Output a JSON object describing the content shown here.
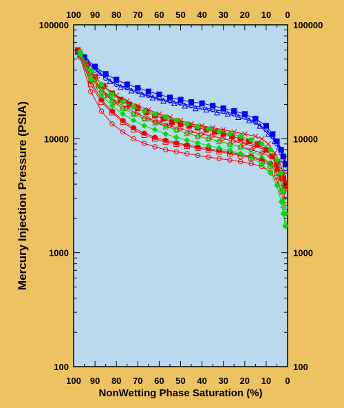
{
  "chart_data": {
    "type": "line",
    "title": "",
    "xlabel": "NonWetting Phase Saturation (%)",
    "ylabel": "Mercury Injection Pressure (PSIA)",
    "x_ticks": [
      100,
      90,
      80,
      70,
      60,
      50,
      40,
      30,
      20,
      10,
      0
    ],
    "y_ticks": [
      100,
      1000,
      10000,
      100000
    ],
    "y_tick_labels": [
      "100",
      "1000",
      "10000",
      "100000"
    ],
    "xlim": [
      100,
      0
    ],
    "ylim": [
      100,
      100000
    ],
    "y_scale": "log",
    "x_reversed": true,
    "grid": false,
    "legend": "none",
    "plot_background": "#B9D9EE",
    "series_colors": {
      "blue": "#0000FF",
      "red": "#EE0000",
      "green": "#00DD00"
    },
    "series": [
      {
        "color": "#0000FF",
        "marker": "square",
        "x": [
          98,
          95,
          90,
          85,
          80,
          75,
          70,
          65,
          60,
          55,
          50,
          45,
          40,
          35,
          30,
          25,
          20,
          15,
          10,
          7,
          5,
          3,
          2,
          1
        ],
        "y": [
          58000,
          52000,
          43000,
          37000,
          33000,
          30000,
          28000,
          26000,
          24500,
          23000,
          22000,
          21000,
          20500,
          19500,
          18500,
          17500,
          16500,
          15000,
          13000,
          11000,
          9500,
          8000,
          7000,
          6000
        ]
      },
      {
        "color": "#0000FF",
        "marker": "circle-open",
        "x": [
          97,
          94,
          90,
          85,
          80,
          75,
          70,
          65,
          60,
          55,
          50,
          45,
          40,
          35,
          30,
          25,
          20,
          15,
          10,
          7,
          5,
          3,
          2,
          1
        ],
        "y": [
          56000,
          48000,
          40000,
          34000,
          30000,
          28000,
          26000,
          24000,
          22500,
          21500,
          20500,
          19500,
          19000,
          18000,
          17500,
          16500,
          15500,
          14000,
          12000,
          10500,
          9000,
          7500,
          6500,
          5500
        ]
      },
      {
        "color": "#0000FF",
        "marker": "triangle-open",
        "x": [
          97,
          93,
          88,
          83,
          78,
          73,
          68,
          63,
          58,
          53,
          48,
          43,
          38,
          33,
          28,
          23,
          18,
          13,
          9,
          6,
          4,
          2,
          1
        ],
        "y": [
          55000,
          46000,
          38000,
          32000,
          28500,
          26500,
          24500,
          23000,
          21500,
          20500,
          19500,
          18500,
          18000,
          17000,
          16500,
          15500,
          14500,
          13000,
          11000,
          9500,
          8500,
          7000,
          6000
        ]
      },
      {
        "color": "#EE0000",
        "marker": "square",
        "x": [
          98,
          94,
          90,
          86,
          82,
          78,
          74,
          70,
          66,
          62,
          58,
          54,
          50,
          46,
          42,
          38,
          34,
          30,
          26,
          22,
          18,
          14,
          10,
          7,
          5,
          3,
          2,
          1
        ],
        "y": [
          60000,
          45000,
          35000,
          29000,
          25000,
          22000,
          20000,
          18500,
          17000,
          16000,
          15000,
          14000,
          13500,
          13000,
          12500,
          12000,
          11500,
          11000,
          10500,
          10000,
          9500,
          9000,
          8000,
          7000,
          6000,
          5000,
          4500,
          4000
        ]
      },
      {
        "color": "#EE0000",
        "marker": "x",
        "x": [
          97,
          93,
          89,
          85,
          80,
          75,
          70,
          65,
          60,
          55,
          50,
          45,
          40,
          35,
          30,
          25,
          20,
          15,
          12,
          9,
          6,
          4,
          2,
          1
        ],
        "y": [
          58000,
          42000,
          33000,
          28000,
          24000,
          21500,
          19500,
          18000,
          16500,
          15500,
          14500,
          13500,
          13000,
          12500,
          12000,
          11500,
          11000,
          10500,
          10000,
          9000,
          7500,
          6500,
          5000,
          4200
        ]
      },
      {
        "color": "#EE0000",
        "marker": "triangle-right-open",
        "x": [
          97,
          92,
          88,
          84,
          80,
          75,
          70,
          65,
          60,
          55,
          50,
          45,
          40,
          35,
          30,
          25,
          20,
          15,
          10,
          7,
          4,
          2,
          1
        ],
        "y": [
          57000,
          38000,
          29000,
          24000,
          21000,
          18500,
          16500,
          15000,
          14000,
          13000,
          12200,
          11500,
          11000,
          10500,
          10000,
          9500,
          9000,
          8500,
          8000,
          7000,
          5500,
          4500,
          3800
        ]
      },
      {
        "color": "#EE0000",
        "marker": "diamond-open",
        "x": [
          97,
          92,
          87,
          82,
          77,
          72,
          67,
          62,
          57,
          52,
          47,
          42,
          37,
          32,
          27,
          22,
          17,
          12,
          8,
          5,
          3,
          1
        ],
        "y": [
          56000,
          35000,
          26000,
          21500,
          18500,
          16500,
          15000,
          14000,
          13000,
          12000,
          11200,
          10500,
          10000,
          9500,
          9000,
          8500,
          8000,
          7500,
          7000,
          6000,
          4800,
          3600
        ]
      },
      {
        "color": "#EE0000",
        "marker": "circle",
        "x": [
          97,
          92,
          87,
          82,
          77,
          72,
          67,
          62,
          57,
          52,
          47,
          42,
          37,
          32,
          27,
          22,
          17,
          12,
          8,
          5,
          3,
          1
        ],
        "y": [
          55000,
          32000,
          22000,
          17500,
          14500,
          12500,
          11200,
          10300,
          9700,
          9200,
          8800,
          8500,
          8200,
          7900,
          7600,
          7300,
          7000,
          6600,
          6100,
          5400,
          4600,
          3800
        ]
      },
      {
        "color": "#EE0000",
        "marker": "square-open",
        "x": [
          97,
          92,
          87,
          82,
          77,
          72,
          67,
          62,
          57,
          52,
          47,
          42,
          37,
          32,
          27,
          22,
          17,
          12,
          8,
          5,
          3,
          2,
          1
        ],
        "y": [
          54000,
          30000,
          21000,
          17000,
          14000,
          12000,
          10800,
          10000,
          9400,
          9000,
          8600,
          8300,
          8000,
          7700,
          7400,
          7100,
          6800,
          6400,
          5800,
          5000,
          4100,
          3500,
          2900
        ]
      },
      {
        "color": "#EE0000",
        "marker": "circle-open",
        "x": [
          97,
          92,
          87,
          82,
          77,
          72,
          67,
          62,
          57,
          52,
          47,
          42,
          37,
          32,
          27,
          22,
          17,
          12,
          8,
          5,
          3,
          1
        ],
        "y": [
          52000,
          26000,
          17500,
          13500,
          11500,
          10000,
          9100,
          8500,
          8000,
          7700,
          7400,
          7150,
          6900,
          6700,
          6500,
          6300,
          6050,
          5700,
          5100,
          4300,
          3400,
          2500
        ]
      },
      {
        "color": "#00DD00",
        "marker": "circle",
        "x": [
          97,
          92,
          87,
          82,
          77,
          72,
          67,
          62,
          57,
          52,
          47,
          42,
          37,
          32,
          27,
          22,
          17,
          12,
          8,
          5,
          3,
          2,
          1
        ],
        "y": [
          58000,
          40000,
          30000,
          24500,
          21000,
          19000,
          17500,
          16500,
          15500,
          14500,
          13500,
          12800,
          12200,
          11500,
          11000,
          10500,
          9800,
          9000,
          8000,
          6500,
          5000,
          3500,
          2200
        ]
      },
      {
        "color": "#00DD00",
        "marker": "triangle-open",
        "x": [
          97,
          92,
          87,
          82,
          77,
          72,
          67,
          62,
          57,
          52,
          47,
          42,
          37,
          32,
          27,
          22,
          17,
          12,
          8,
          5,
          3,
          2,
          1
        ],
        "y": [
          56000,
          36000,
          26500,
          22000,
          18500,
          16500,
          15000,
          13800,
          12800,
          12000,
          11200,
          10500,
          10000,
          9500,
          9000,
          8500,
          7800,
          7000,
          6000,
          4800,
          3500,
          2600,
          1800
        ]
      },
      {
        "color": "#00DD00",
        "marker": "diamond",
        "x": [
          97,
          92,
          87,
          82,
          77,
          72,
          67,
          62,
          57,
          52,
          47,
          42,
          37,
          32,
          27,
          22,
          17,
          12,
          8,
          5,
          3,
          2,
          1
        ],
        "y": [
          55000,
          33000,
          24000,
          19500,
          16500,
          14500,
          13000,
          12000,
          11000,
          10300,
          9700,
          9200,
          8700,
          8300,
          7900,
          7400,
          6800,
          6000,
          5000,
          3900,
          2800,
          2200,
          1700
        ]
      }
    ]
  }
}
